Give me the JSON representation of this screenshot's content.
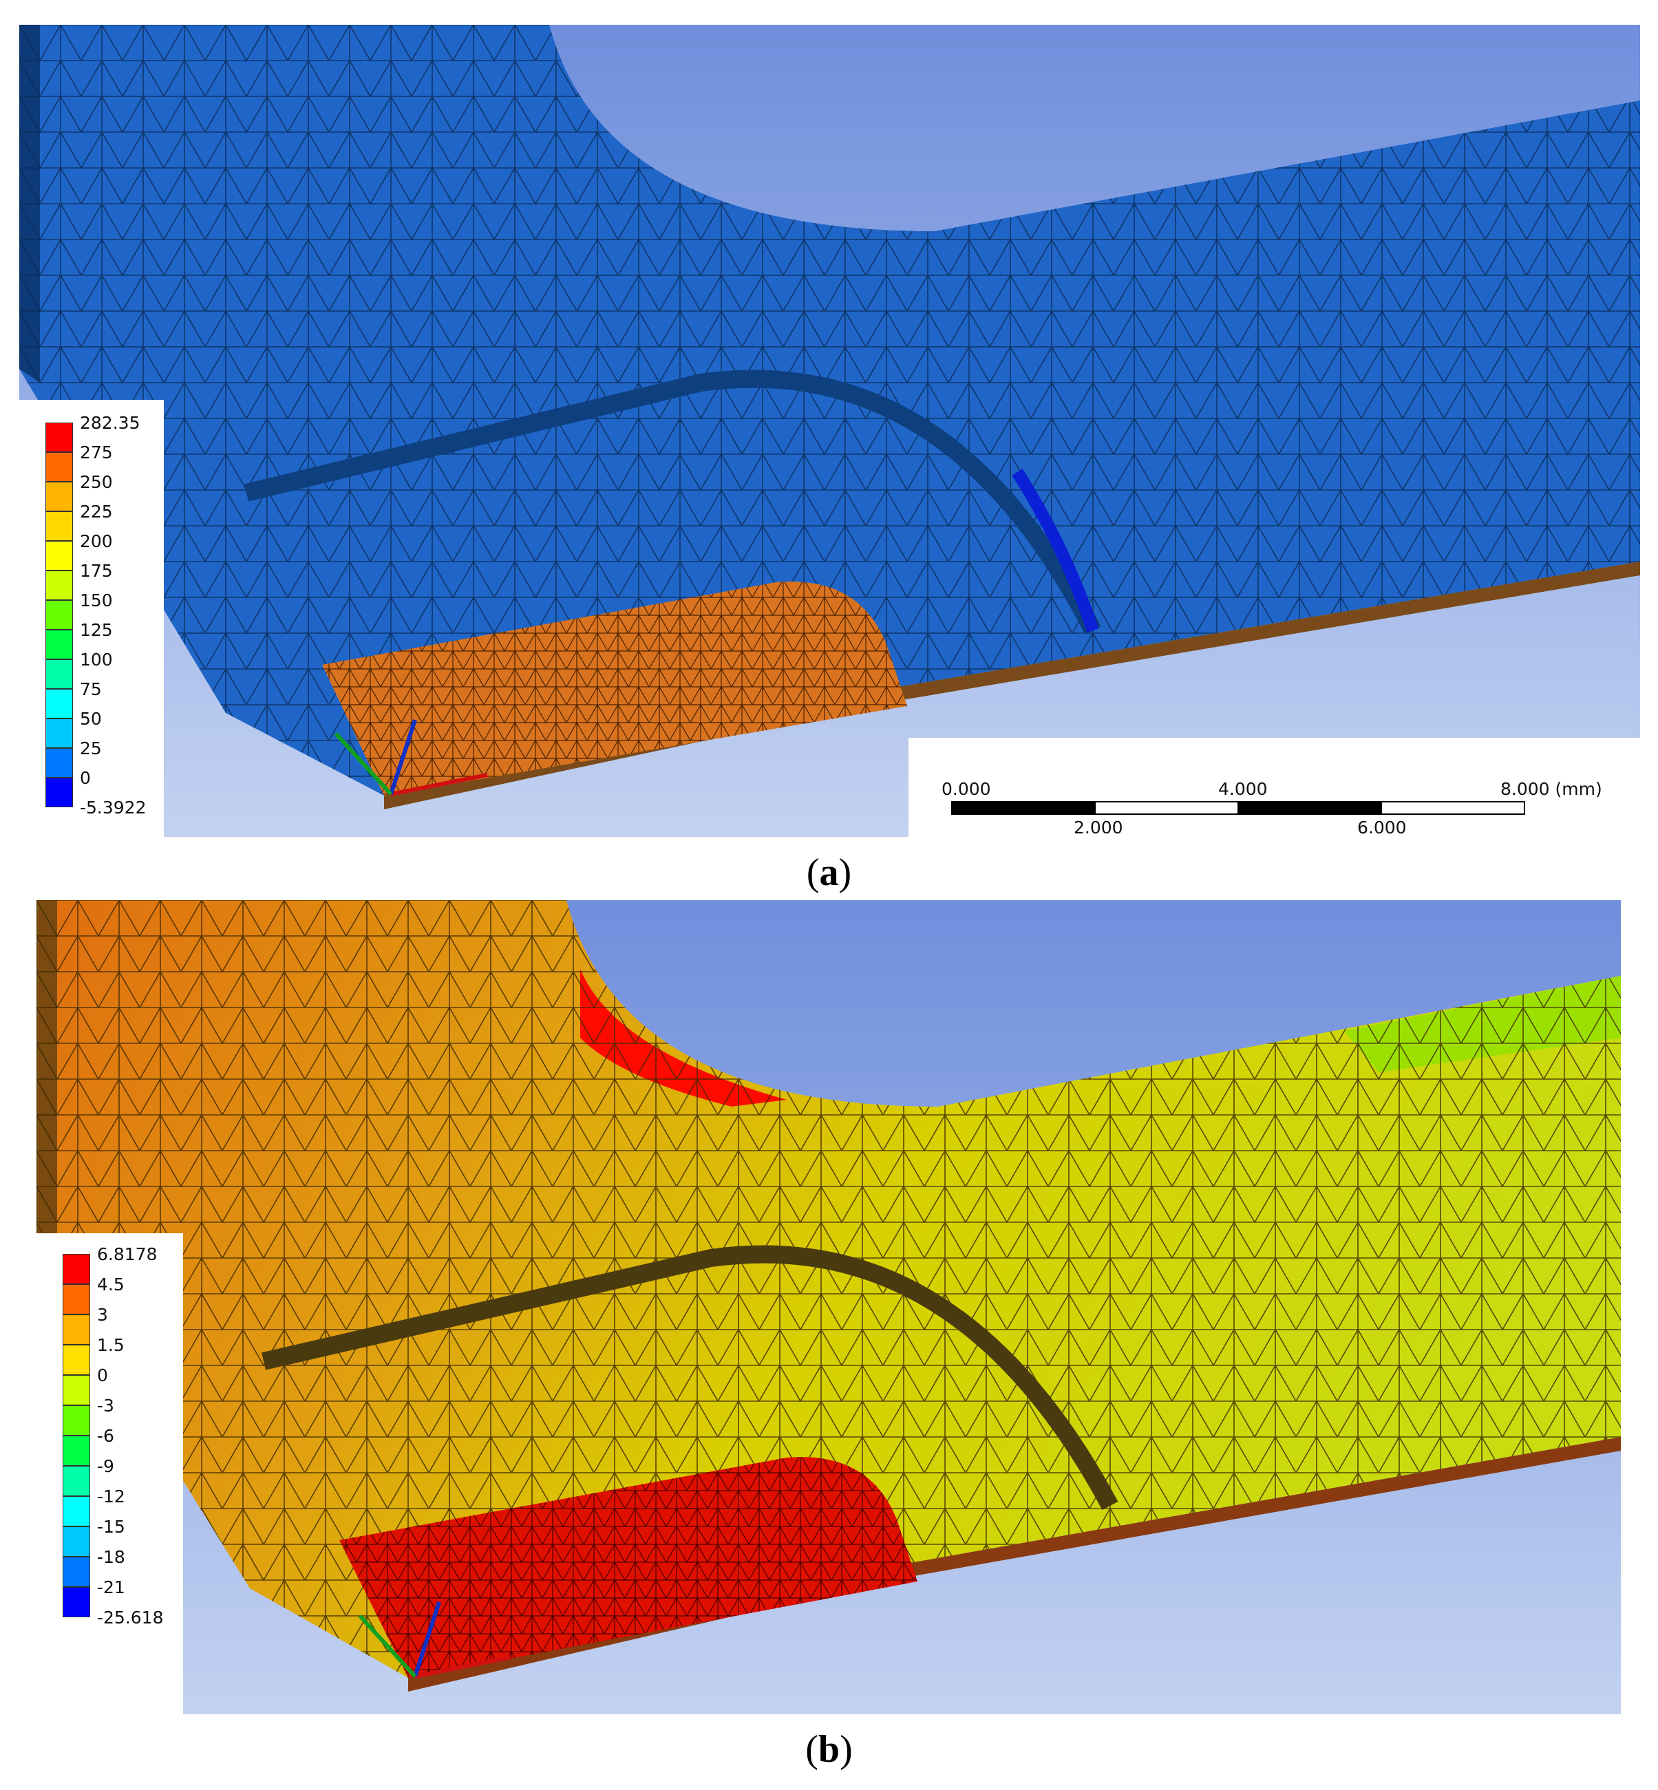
{
  "figure": {
    "panel_a": {
      "caption_label": "a",
      "legend_values": [
        "282.35",
        "275",
        "250",
        "225",
        "200",
        "175",
        "150",
        "125",
        "100",
        "75",
        "50",
        "25",
        "0",
        "-5.3922"
      ],
      "legend_colors": [
        "#ff0000",
        "#ff6a00",
        "#ffb400",
        "#ffd800",
        "#ffff00",
        "#ccff00",
        "#66ff00",
        "#00ff44",
        "#00ffaa",
        "#00ffff",
        "#00c8ff",
        "#0078ff",
        "#0000ff"
      ],
      "scale_bar": {
        "top_labels": [
          "0.000",
          "4.000",
          "8.000 (mm)"
        ],
        "bottom_labels": [
          "2.000",
          "6.000"
        ]
      }
    },
    "panel_b": {
      "caption_label": "b",
      "legend_values": [
        "6.8178",
        "4.5",
        "3",
        "1.5",
        "0",
        "-3",
        "-6",
        "-9",
        "-12",
        "-15",
        "-18",
        "-21",
        "-25.618"
      ],
      "legend_colors": [
        "#ff0000",
        "#ff6a00",
        "#ffb400",
        "#ffe000",
        "#ccff00",
        "#66ff00",
        "#00ff44",
        "#00ffaa",
        "#00ffff",
        "#00c8ff",
        "#0078ff",
        "#0000ff"
      ]
    }
  }
}
